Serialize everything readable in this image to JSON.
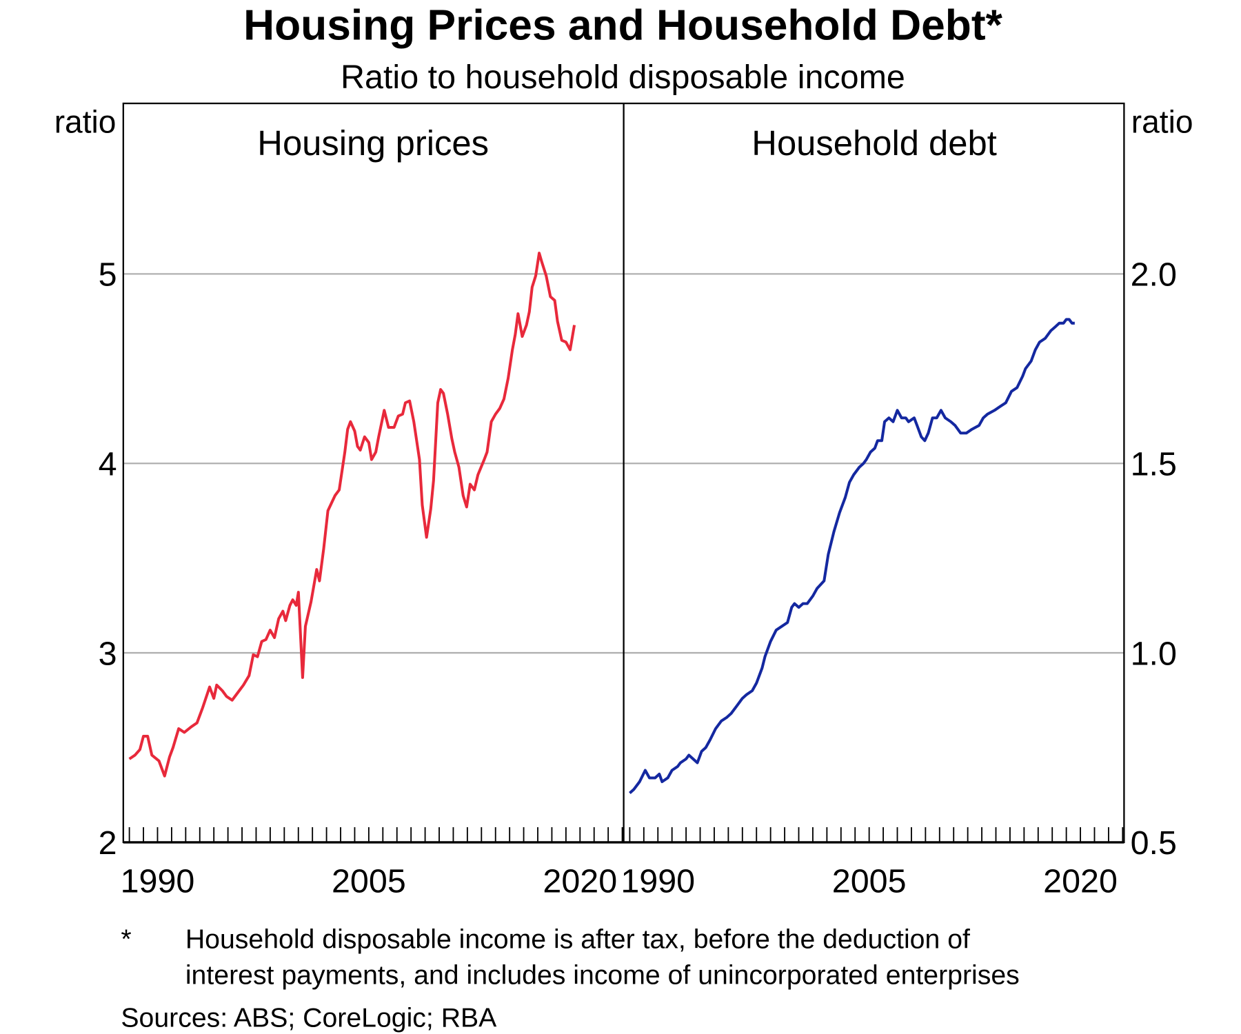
{
  "chart_data": {
    "type": "line",
    "title": "Housing Prices and Household Debt*",
    "subtitle": "Ratio to household disposable income",
    "footnote_marker": "*",
    "footnote_lines": [
      "Household disposable income is after tax, before the deduction of",
      "interest payments, and includes income of unincorporated enterprises"
    ],
    "sources": "Sources: ABS; CoreLogic; RBA",
    "grid": true,
    "panels": [
      {
        "title": "Housing prices",
        "ylabel": "ratio",
        "axis_side": "left",
        "ylim": [
          2,
          5.9
        ],
        "yticks": [
          2,
          3,
          4,
          5
        ],
        "ytick_labels": [
          "2",
          "3",
          "4",
          "5"
        ],
        "xlim": [
          1987.57,
          2023.1
        ],
        "xtick_labels": [
          "1990",
          "2005",
          "2020"
        ],
        "xticks": [
          1990,
          2005,
          2020
        ],
        "color": "#e8293b",
        "series": [
          {
            "x": [
              1988.0,
              1988.4,
              1988.75,
              1989.0,
              1989.3,
              1989.6,
              1990.1,
              1990.5,
              1990.85,
              1991.1,
              1991.5,
              1991.9,
              1992.4,
              1992.8,
              1993.2,
              1993.7,
              1994.0,
              1994.2,
              1994.6,
              1994.9,
              1995.3,
              1995.8,
              1996.1,
              1996.5,
              1996.8,
              1997.1,
              1997.4,
              1997.7,
              1998.0,
              1998.3,
              1998.6,
              1998.9,
              1999.1,
              1999.4,
              1999.6,
              1999.85,
              2000.0,
              2000.3,
              2000.5,
              2000.9,
              2001.3,
              2001.5,
              2001.8,
              2002.1,
              2002.6,
              2002.9,
              2003.3,
              2003.5,
              2003.7,
              2004.0,
              2004.2,
              2004.4,
              2004.7,
              2005.0,
              2005.2,
              2005.5,
              2005.7,
              2006.1,
              2006.4,
              2006.8,
              2007.1,
              2007.4,
              2007.6,
              2007.9,
              2008.2,
              2008.6,
              2008.8,
              2009.1,
              2009.4,
              2009.6,
              2009.9,
              2010.1,
              2010.3,
              2010.6,
              2010.9,
              2011.1,
              2011.4,
              2011.7,
              2011.95,
              2012.2,
              2012.5,
              2012.75,
              2013.2,
              2013.4,
              2013.7,
              2014.0,
              2014.3,
              2014.6,
              2014.9,
              2015.2,
              2015.4,
              2015.6,
              2015.9,
              2016.2,
              2016.4,
              2016.6,
              2016.85,
              2017.1,
              2017.3,
              2017.6,
              2017.9,
              2018.2,
              2018.4,
              2018.7,
              2019.0,
              2019.3,
              2019.6
            ],
            "y": [
              2.44,
              2.46,
              2.49,
              2.56,
              2.56,
              2.46,
              2.43,
              2.35,
              2.45,
              2.5,
              2.6,
              2.58,
              2.61,
              2.63,
              2.71,
              2.82,
              2.76,
              2.83,
              2.8,
              2.77,
              2.75,
              2.8,
              2.83,
              2.88,
              2.99,
              2.98,
              3.06,
              3.07,
              3.12,
              3.08,
              3.18,
              3.22,
              3.17,
              3.25,
              3.28,
              3.25,
              3.32,
              2.87,
              3.14,
              3.27,
              3.44,
              3.38,
              3.55,
              3.75,
              3.83,
              3.86,
              4.06,
              4.18,
              4.22,
              4.17,
              4.09,
              4.07,
              4.14,
              4.11,
              4.02,
              4.06,
              4.14,
              4.28,
              4.19,
              4.19,
              4.25,
              4.26,
              4.32,
              4.33,
              4.22,
              4.02,
              3.78,
              3.61,
              3.76,
              3.91,
              4.32,
              4.39,
              4.37,
              4.26,
              4.13,
              4.06,
              3.98,
              3.83,
              3.77,
              3.89,
              3.86,
              3.94,
              4.02,
              4.06,
              4.22,
              4.26,
              4.29,
              4.34,
              4.45,
              4.6,
              4.68,
              4.79,
              4.67,
              4.73,
              4.8,
              4.93,
              4.99,
              5.11,
              5.06,
              4.99,
              4.88,
              4.86,
              4.75,
              4.65,
              4.64,
              4.6,
              4.73
            ]
          }
        ]
      },
      {
        "title": "Household debt",
        "ylabel": "ratio",
        "axis_side": "right",
        "ylim": [
          0.5,
          2.45
        ],
        "yticks": [
          0.5,
          1.0,
          1.5,
          2.0
        ],
        "ytick_labels": [
          "0.5",
          "1.0",
          "1.5",
          "2.0"
        ],
        "xlim": [
          1987.57,
          2023.1
        ],
        "xtick_labels": [
          "1990",
          "2005",
          "2020"
        ],
        "xticks": [
          1990,
          2005,
          2020
        ],
        "color": "#1428a0",
        "series": [
          {
            "x": [
              1988.0,
              1988.3,
              1988.7,
              1989.1,
              1989.4,
              1989.8,
              1990.1,
              1990.3,
              1990.7,
              1991.0,
              1991.4,
              1991.6,
              1992.0,
              1992.2,
              1992.5,
              1992.8,
              1993.1,
              1993.4,
              1993.7,
              1994.1,
              1994.5,
              1994.9,
              1995.2,
              1995.6,
              1996.0,
              1996.3,
              1996.7,
              1997.0,
              1997.4,
              1997.6,
              1998.0,
              1998.4,
              1998.8,
              1999.2,
              1999.5,
              1999.7,
              2000.0,
              2000.3,
              2000.6,
              2001.0,
              2001.3,
              2001.8,
              2002.1,
              2002.5,
              2002.9,
              2003.3,
              2003.6,
              2003.9,
              2004.3,
              2004.6,
              2004.8,
              2005.1,
              2005.4,
              2005.6,
              2005.9,
              2006.1,
              2006.4,
              2006.7,
              2007.0,
              2007.3,
              2007.6,
              2007.8,
              2008.2,
              2008.4,
              2008.7,
              2008.95,
              2009.2,
              2009.5,
              2009.8,
              2010.1,
              2010.4,
              2010.8,
              2011.1,
              2011.5,
              2011.9,
              2012.3,
              2012.8,
              2013.1,
              2013.4,
              2013.9,
              2014.3,
              2014.7,
              2015.1,
              2015.5,
              2015.9,
              2016.1,
              2016.5,
              2016.8,
              2017.1,
              2017.5,
              2017.9,
              2018.2,
              2018.5,
              2018.8,
              2019.0,
              2019.2,
              2019.4,
              2019.6
            ],
            "y": [
              0.63,
              0.64,
              0.66,
              0.69,
              0.67,
              0.67,
              0.68,
              0.66,
              0.67,
              0.69,
              0.7,
              0.71,
              0.72,
              0.73,
              0.72,
              0.71,
              0.74,
              0.75,
              0.77,
              0.8,
              0.82,
              0.83,
              0.84,
              0.86,
              0.88,
              0.89,
              0.9,
              0.92,
              0.96,
              0.99,
              1.03,
              1.06,
              1.07,
              1.08,
              1.12,
              1.13,
              1.12,
              1.13,
              1.13,
              1.15,
              1.17,
              1.19,
              1.26,
              1.32,
              1.37,
              1.41,
              1.45,
              1.47,
              1.49,
              1.5,
              1.51,
              1.53,
              1.54,
              1.56,
              1.56,
              1.61,
              1.62,
              1.61,
              1.64,
              1.62,
              1.62,
              1.61,
              1.62,
              1.6,
              1.57,
              1.56,
              1.58,
              1.62,
              1.62,
              1.64,
              1.62,
              1.61,
              1.6,
              1.58,
              1.58,
              1.59,
              1.6,
              1.62,
              1.63,
              1.64,
              1.65,
              1.66,
              1.69,
              1.7,
              1.73,
              1.75,
              1.77,
              1.8,
              1.82,
              1.83,
              1.85,
              1.86,
              1.87,
              1.87,
              1.88,
              1.88,
              1.87,
              1.87
            ]
          }
        ]
      }
    ]
  }
}
